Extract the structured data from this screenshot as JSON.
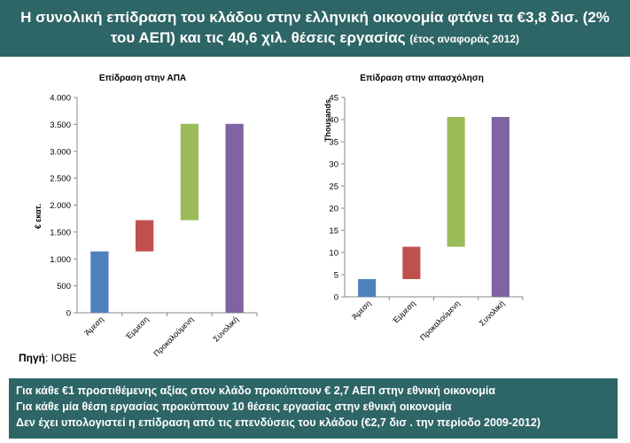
{
  "header": {
    "line1": "Η συνολική επίδραση του κλάδου στην ελληνική οικονομία φτάνει τα €3,8 δισ. (2%",
    "line2": "του ΑΕΠ) και τις 40,6 χιλ. θέσεις εργασίας",
    "subnote": "(έτος αναφοράς 2012)"
  },
  "source": {
    "label": "Πηγή",
    "value": ": IOBE"
  },
  "footer": {
    "lines": [
      "Για κάθε €1 προστιθέμενης αξίας στον κλάδο προκύπτουν € 2,7 ΑΕΠ στην εθνική οικονομία",
      "Για κάθε μία θέση εργασίας προκύπτουν 10 θέσεις εργασίας στην εθνική οικονομία",
      "Δεν έχει υπολογιστεί η επίδραση από τις επενδύσεις του κλάδου (€2,7 δισ . την περίοδο 2009-2012)"
    ]
  },
  "chart_data": [
    {
      "type": "bar",
      "subtype": "waterfall",
      "title": "Επίδραση στην ΑΠΑ",
      "xlabel": "",
      "ylabel": "€ εκατ.",
      "ylim": [
        0,
        4000
      ],
      "yticks": [
        0,
        500,
        1000,
        1500,
        2000,
        2500,
        3000,
        3500,
        4000
      ],
      "ytick_labels": [
        "0",
        "500",
        "1.000",
        "1.500",
        "2.000",
        "2.500",
        "3.000",
        "3.500",
        "4.000"
      ],
      "categories": [
        "Άμεση",
        "Έμμεση",
        "Προκαλούμενη",
        "Συνολική"
      ],
      "bars": [
        {
          "base": 0,
          "top": 1140,
          "color": "#4f81bd"
        },
        {
          "base": 1140,
          "top": 1720,
          "color": "#c0504d"
        },
        {
          "base": 1720,
          "top": 3510,
          "color": "#9bbb59"
        },
        {
          "base": 0,
          "top": 3510,
          "color": "#8064a2"
        }
      ],
      "grid": false,
      "legend": "none"
    },
    {
      "type": "bar",
      "subtype": "waterfall",
      "title": "Επίδραση στην απασχόληση",
      "xlabel": "",
      "ylabel": "Thousands",
      "ylim": [
        0,
        45
      ],
      "yticks": [
        0,
        5,
        10,
        15,
        20,
        25,
        30,
        35,
        40,
        45
      ],
      "ytick_labels": [
        "0",
        "5",
        "10",
        "15",
        "20",
        "25",
        "30",
        "35",
        "40",
        "45"
      ],
      "categories": [
        "Άμεση",
        "Έμμεση",
        "Προκαλούμενη",
        "Συνολική"
      ],
      "bars": [
        {
          "base": 0,
          "top": 4,
          "color": "#4f81bd"
        },
        {
          "base": 4,
          "top": 11.3,
          "color": "#c0504d"
        },
        {
          "base": 11.3,
          "top": 40.6,
          "color": "#9bbb59"
        },
        {
          "base": 0,
          "top": 40.6,
          "color": "#8064a2"
        }
      ],
      "grid": false,
      "legend": "none"
    }
  ]
}
